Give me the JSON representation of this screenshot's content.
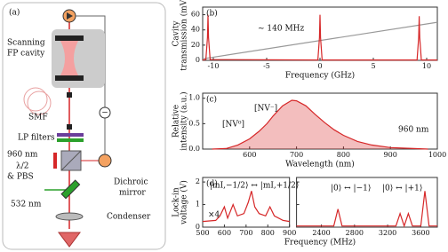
{
  "diagram": {
    "panel_label": "(a)",
    "scanning_fp_cavity": [
      "Scanning",
      "FP cavity"
    ],
    "smf": "SMF",
    "lp_filters": "LP filters",
    "laser_960": "960 nm",
    "waveplate": [
      "λ/2",
      "& PBS"
    ],
    "laser_532": "532 nm",
    "dichroic_mirror": [
      "Dichroic",
      "mirror"
    ],
    "condenser": "Condenser",
    "feedback_sign": "−"
  },
  "chart_data": [
    {
      "type": "line",
      "panel_label": "(b)",
      "xlabel": "Frequency (GHz)",
      "ylabel": [
        "Cavity",
        "transmission (mV)"
      ],
      "xlim": [
        -11,
        11
      ],
      "xticks": [
        -10,
        -5,
        0,
        5,
        10
      ],
      "ylim": [
        0,
        70
      ],
      "yticks": [
        0,
        20,
        40,
        60
      ],
      "annotations": [
        "~ 140 MHz"
      ],
      "series": [
        {
          "color": "#999999",
          "x": [
            -11,
            11
          ],
          "values": [
            2,
            50
          ]
        },
        {
          "color": "#d62728",
          "x": [
            -11,
            -10.7,
            -10.55,
            -10.5,
            -10.45,
            -10.3,
            -0.2,
            -0.05,
            0,
            0.05,
            0.2,
            9.1,
            9.25,
            9.3,
            9.35,
            9.5,
            11
          ],
          "values": [
            0.5,
            1,
            30,
            60,
            30,
            1,
            0.5,
            30,
            60,
            30,
            0.5,
            0.5,
            30,
            58,
            30,
            0.5,
            0.5
          ]
        }
      ]
    },
    {
      "type": "area",
      "panel_label": "(c)",
      "xlabel": "Wavelength (nm)",
      "ylabel": [
        "Relative",
        "intensity (a.u.)"
      ],
      "xlim": [
        500,
        1000
      ],
      "xticks": [
        600,
        700,
        800,
        900,
        1000
      ],
      "ylim": [
        0,
        1.1
      ],
      "yticks": [
        {
          "value": 0,
          "label": "0.0"
        },
        {
          "value": 0.5,
          "label": "0.5"
        },
        {
          "value": 1,
          "label": "1.0"
        }
      ],
      "annotations": [
        "[NV⁰]",
        "[NV⁻]",
        "960 nm"
      ],
      "series": [
        {
          "color": "#d62728",
          "x": [
            520,
            550,
            575,
            600,
            620,
            637,
            650,
            670,
            690,
            700,
            720,
            740,
            760,
            780,
            800,
            830,
            860,
            900,
            950,
            980
          ],
          "values": [
            0,
            0.01,
            0.08,
            0.2,
            0.35,
            0.5,
            0.65,
            0.85,
            0.96,
            0.95,
            0.85,
            0.68,
            0.52,
            0.38,
            0.27,
            0.15,
            0.08,
            0.03,
            0.01,
            0
          ]
        }
      ]
    },
    {
      "type": "line",
      "panel_label": "(d)",
      "xlabel": "Frequency (MHz)",
      "ylabel": [
        "Lock-in",
        "voltage (V)"
      ],
      "ylim": [
        0,
        2.2
      ],
      "yticks": [
        0,
        1,
        2
      ],
      "annotations": [
        "|mI,−1/2⟩ ↔ |mI,+1/2⟩",
        "×4",
        "|0⟩ ↔ |−1⟩",
        "|0⟩ ↔ |+1⟩"
      ],
      "segments": [
        {
          "xlim": [
            500,
            900
          ],
          "xticks": [
            500,
            600,
            700,
            800,
            900
          ],
          "series": [
            {
              "color": "#d62728",
              "x": [
                500,
                560,
                580,
                600,
                615,
                640,
                660,
                690,
                710,
                725,
                740,
                760,
                790,
                810,
                830,
                870,
                900
              ],
              "values": [
                0.25,
                0.3,
                0.5,
                0.9,
                0.4,
                1.0,
                0.5,
                0.6,
                1.1,
                1.6,
                0.9,
                0.6,
                0.5,
                0.9,
                0.5,
                0.3,
                0.25
              ]
            }
          ]
        },
        {
          "xlim": [
            2100,
            3800
          ],
          "xticks": [
            2400,
            2800,
            3200,
            3600
          ],
          "series": [
            {
              "color": "#d62728",
              "x": [
                2100,
                2550,
                2600,
                2650,
                3300,
                3350,
                3400,
                3450,
                3500,
                3600,
                3650,
                3700,
                3800
              ],
              "values": [
                0.05,
                0.05,
                0.8,
                0.05,
                0.05,
                0.6,
                0.05,
                0.6,
                0.05,
                0.05,
                1.6,
                0.05,
                0.05
              ]
            }
          ]
        }
      ]
    }
  ]
}
